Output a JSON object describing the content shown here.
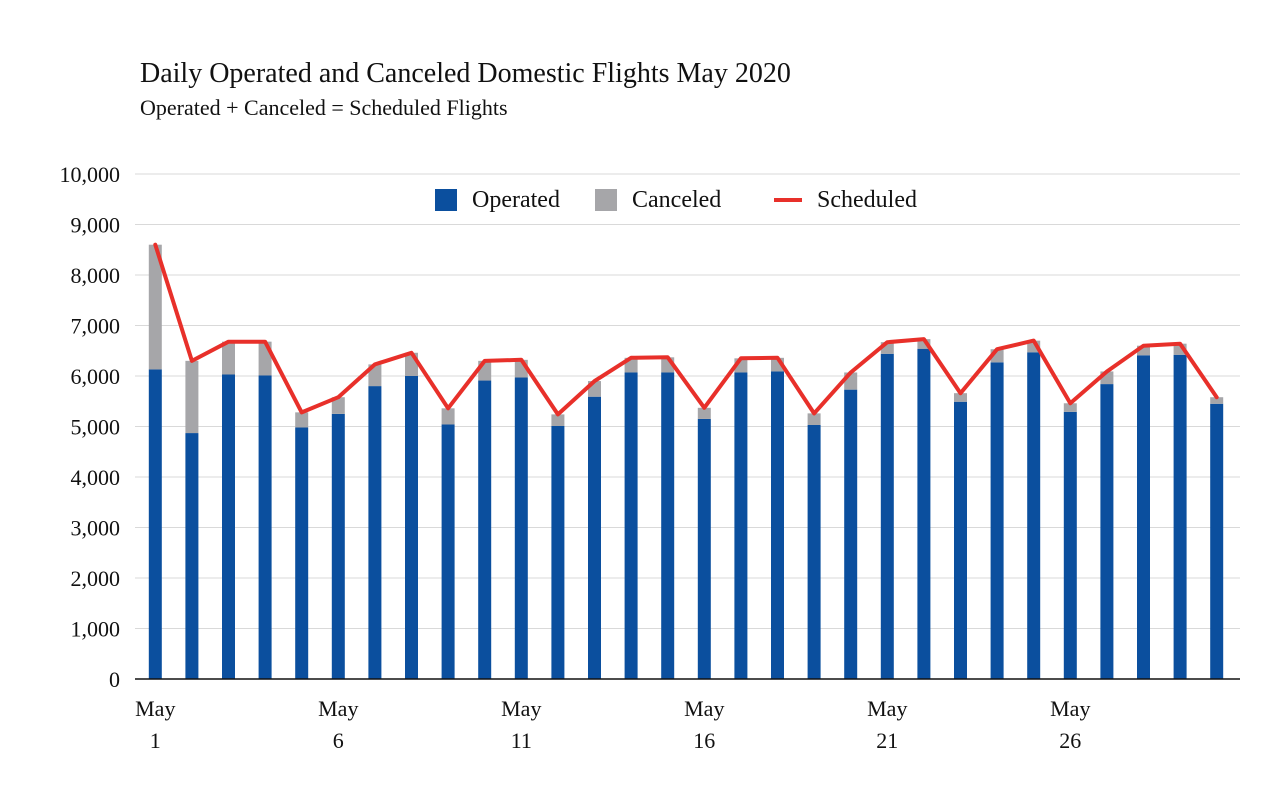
{
  "chart_data": {
    "type": "bar",
    "title": "Daily Operated and Canceled Domestic Flights May 2020",
    "subtitle": "Operated + Canceled = Scheduled Flights",
    "xlabel": "",
    "ylabel": "",
    "ylim": [
      0,
      10000
    ],
    "y_ticks": [
      0,
      1000,
      2000,
      3000,
      4000,
      5000,
      6000,
      7000,
      8000,
      9000,
      10000
    ],
    "y_tick_labels": [
      "0",
      "1,000",
      "2,000",
      "3,000",
      "4,000",
      "5,000",
      "6,000",
      "7,000",
      "8,000",
      "9,000",
      "10,000"
    ],
    "grid": true,
    "legend_position": "top-center",
    "stacked": true,
    "categories": [
      "May 1",
      "May 2",
      "May 3",
      "May 4",
      "May 5",
      "May 6",
      "May 7",
      "May 8",
      "May 9",
      "May 10",
      "May 11",
      "May 12",
      "May 13",
      "May 14",
      "May 15",
      "May 16",
      "May 17",
      "May 18",
      "May 19",
      "May 20",
      "May 21",
      "May 22",
      "May 23",
      "May 24",
      "May 25",
      "May 26",
      "May 27",
      "May 28",
      "May 29",
      "May 30"
    ],
    "x_tick_labels": [
      {
        "index": 0,
        "line1": "May",
        "line2": "1"
      },
      {
        "index": 5,
        "line1": "May",
        "line2": "6"
      },
      {
        "index": 10,
        "line1": "May",
        "line2": "11"
      },
      {
        "index": 15,
        "line1": "May",
        "line2": "16"
      },
      {
        "index": 20,
        "line1": "May",
        "line2": "21"
      },
      {
        "index": 25,
        "line1": "May",
        "line2": "26"
      }
    ],
    "series": [
      {
        "name": "Operated",
        "kind": "bar",
        "color": "#0B4F9E",
        "values": [
          6130,
          4870,
          6030,
          6010,
          4980,
          5250,
          5800,
          6000,
          5040,
          5910,
          5970,
          5010,
          5590,
          6070,
          6070,
          5150,
          6070,
          6090,
          5030,
          5730,
          6440,
          6540,
          5490,
          6270,
          6470,
          5290,
          5840,
          6410,
          6420,
          5450
        ]
      },
      {
        "name": "Canceled",
        "kind": "bar",
        "color": "#A6A6A9",
        "values": [
          2470,
          1430,
          650,
          670,
          300,
          330,
          430,
          460,
          320,
          390,
          350,
          230,
          310,
          290,
          300,
          220,
          280,
          270,
          230,
          340,
          230,
          190,
          170,
          260,
          230,
          170,
          250,
          190,
          220,
          130
        ]
      },
      {
        "name": "Scheduled",
        "kind": "line",
        "color": "#E8302A",
        "values": [
          8600,
          6300,
          6680,
          6680,
          5280,
          5580,
          6230,
          6460,
          5360,
          6300,
          6320,
          5240,
          5900,
          6360,
          6370,
          5370,
          6350,
          6360,
          5260,
          6070,
          6670,
          6730,
          5660,
          6530,
          6700,
          5460,
          6090,
          6600,
          6640,
          5580
        ]
      }
    ],
    "legend": [
      {
        "label": "Operated",
        "color": "#0B4F9E",
        "swatch": "square"
      },
      {
        "label": "Canceled",
        "color": "#A6A6A9",
        "swatch": "square"
      },
      {
        "label": "Scheduled",
        "color": "#E8302A",
        "swatch": "line"
      }
    ]
  }
}
